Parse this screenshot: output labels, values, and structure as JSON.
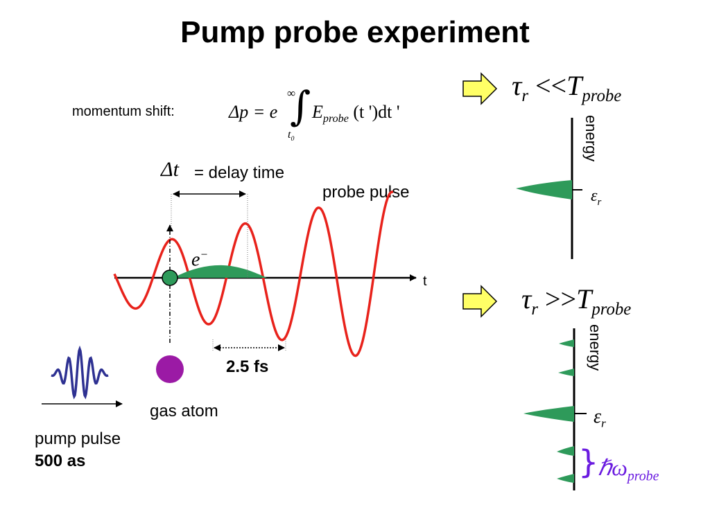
{
  "title": "Pump probe experiment",
  "momentum": {
    "label": "momentum shift:",
    "lhs": "Δp = e",
    "upper": "∞",
    "lower": "t",
    "lower_sub": "0",
    "integrand": "E",
    "integrand_sub": "probe",
    "integrand_tail": "(t ')dt '"
  },
  "delay": {
    "symbol": "Δt",
    "label": "= delay time"
  },
  "probe_pulse_label": "probe pulse",
  "electron": {
    "symbol": "e",
    "sup": "−"
  },
  "t_axis_label": "t",
  "period_label": "2.5 fs",
  "gas_atom_label": "gas atom",
  "pump": {
    "label": "pump pulse",
    "duration": "500 as"
  },
  "case_short": {
    "tau": "τ",
    "tau_sub": "r",
    "relation": "<<",
    "T": "T",
    "T_sub": "probe"
  },
  "case_long": {
    "tau": "τ",
    "tau_sub": "r",
    "relation": ">>",
    "T": "T",
    "T_sub": "probe"
  },
  "energy_axis_label": "energy",
  "epsilon": {
    "symbol": "ε",
    "sub": "r"
  },
  "hbar_omega": {
    "brace": "}",
    "symbol": "ℏω",
    "sub": "probe"
  },
  "colors": {
    "wave": "#e8221b",
    "electron_fill": "#2e9a5a",
    "atom": "#9b1aa5",
    "pump_wave": "#2e3192",
    "arrow_fill": "#ffff66",
    "brace": "#6a1be0"
  }
}
